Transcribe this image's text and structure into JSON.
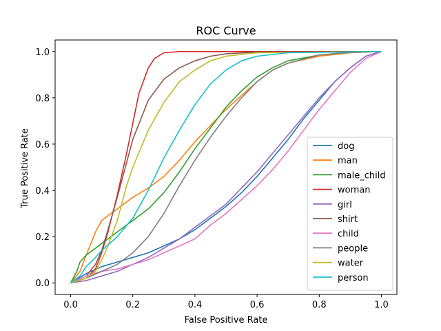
{
  "chart_data": {
    "type": "line",
    "title": "ROC Curve",
    "xlabel": "False Positive Rate",
    "ylabel": "True Positive Rate",
    "xlim": [
      -0.05,
      1.05
    ],
    "ylim": [
      -0.05,
      1.05
    ],
    "xticks": [
      "0.0",
      "0.2",
      "0.4",
      "0.6",
      "0.8",
      "1.0"
    ],
    "yticks": [
      "0.0",
      "0.2",
      "0.4",
      "0.6",
      "0.8",
      "1.0"
    ],
    "grid": false,
    "legend_position": "lower-right",
    "series": [
      {
        "name": "dog",
        "color": "#1f77b4",
        "points": [
          [
            0,
            0
          ],
          [
            0.05,
            0.04
          ],
          [
            0.1,
            0.07
          ],
          [
            0.15,
            0.09
          ],
          [
            0.2,
            0.11
          ],
          [
            0.25,
            0.13
          ],
          [
            0.3,
            0.16
          ],
          [
            0.35,
            0.19
          ],
          [
            0.4,
            0.23
          ],
          [
            0.45,
            0.28
          ],
          [
            0.5,
            0.33
          ],
          [
            0.55,
            0.39
          ],
          [
            0.6,
            0.46
          ],
          [
            0.65,
            0.54
          ],
          [
            0.7,
            0.62
          ],
          [
            0.75,
            0.71
          ],
          [
            0.8,
            0.79
          ],
          [
            0.85,
            0.87
          ],
          [
            0.9,
            0.93
          ],
          [
            0.95,
            0.98
          ],
          [
            1,
            1
          ]
        ]
      },
      {
        "name": "man",
        "color": "#ff7f0e",
        "points": [
          [
            0,
            0
          ],
          [
            0.03,
            0.05
          ],
          [
            0.05,
            0.12
          ],
          [
            0.08,
            0.22
          ],
          [
            0.1,
            0.27
          ],
          [
            0.12,
            0.29
          ],
          [
            0.15,
            0.32
          ],
          [
            0.2,
            0.37
          ],
          [
            0.25,
            0.41
          ],
          [
            0.3,
            0.46
          ],
          [
            0.35,
            0.53
          ],
          [
            0.4,
            0.61
          ],
          [
            0.45,
            0.68
          ],
          [
            0.5,
            0.75
          ],
          [
            0.55,
            0.81
          ],
          [
            0.6,
            0.87
          ],
          [
            0.65,
            0.92
          ],
          [
            0.7,
            0.95
          ],
          [
            0.8,
            0.98
          ],
          [
            0.9,
            0.995
          ],
          [
            1,
            1
          ]
        ]
      },
      {
        "name": "male_child",
        "color": "#2ca02c",
        "points": [
          [
            0,
            0
          ],
          [
            0.02,
            0.05
          ],
          [
            0.03,
            0.09
          ],
          [
            0.05,
            0.12
          ],
          [
            0.1,
            0.17
          ],
          [
            0.15,
            0.22
          ],
          [
            0.2,
            0.27
          ],
          [
            0.25,
            0.32
          ],
          [
            0.3,
            0.39
          ],
          [
            0.35,
            0.48
          ],
          [
            0.4,
            0.58
          ],
          [
            0.45,
            0.67
          ],
          [
            0.5,
            0.76
          ],
          [
            0.55,
            0.83
          ],
          [
            0.6,
            0.89
          ],
          [
            0.65,
            0.93
          ],
          [
            0.7,
            0.96
          ],
          [
            0.8,
            0.985
          ],
          [
            0.9,
            0.997
          ],
          [
            1,
            1
          ]
        ]
      },
      {
        "name": "woman",
        "color": "#d62728",
        "points": [
          [
            0,
            0
          ],
          [
            0.05,
            0.02
          ],
          [
            0.08,
            0.06
          ],
          [
            0.1,
            0.13
          ],
          [
            0.12,
            0.22
          ],
          [
            0.15,
            0.38
          ],
          [
            0.18,
            0.56
          ],
          [
            0.2,
            0.69
          ],
          [
            0.22,
            0.82
          ],
          [
            0.25,
            0.93
          ],
          [
            0.27,
            0.97
          ],
          [
            0.3,
            0.995
          ],
          [
            0.35,
            1
          ],
          [
            1,
            1
          ]
        ]
      },
      {
        "name": "girl",
        "color": "#9467bd",
        "points": [
          [
            0,
            0
          ],
          [
            0.05,
            0.01
          ],
          [
            0.1,
            0.03
          ],
          [
            0.15,
            0.05
          ],
          [
            0.2,
            0.08
          ],
          [
            0.25,
            0.11
          ],
          [
            0.3,
            0.15
          ],
          [
            0.35,
            0.19
          ],
          [
            0.4,
            0.24
          ],
          [
            0.45,
            0.29
          ],
          [
            0.5,
            0.34
          ],
          [
            0.55,
            0.41
          ],
          [
            0.6,
            0.48
          ],
          [
            0.65,
            0.56
          ],
          [
            0.7,
            0.64
          ],
          [
            0.75,
            0.72
          ],
          [
            0.8,
            0.8
          ],
          [
            0.85,
            0.87
          ],
          [
            0.9,
            0.93
          ],
          [
            0.95,
            0.98
          ],
          [
            1,
            1
          ]
        ]
      },
      {
        "name": "shirt",
        "color": "#8c564b",
        "points": [
          [
            0,
            0
          ],
          [
            0.05,
            0.03
          ],
          [
            0.08,
            0.08
          ],
          [
            0.1,
            0.14
          ],
          [
            0.12,
            0.23
          ],
          [
            0.15,
            0.37
          ],
          [
            0.18,
            0.52
          ],
          [
            0.2,
            0.62
          ],
          [
            0.25,
            0.79
          ],
          [
            0.3,
            0.88
          ],
          [
            0.35,
            0.93
          ],
          [
            0.4,
            0.96
          ],
          [
            0.45,
            0.98
          ],
          [
            0.5,
            0.99
          ],
          [
            0.6,
            0.998
          ],
          [
            1,
            1
          ]
        ]
      },
      {
        "name": "child",
        "color": "#e377c2",
        "points": [
          [
            0,
            0
          ],
          [
            0.05,
            0.03
          ],
          [
            0.1,
            0.05
          ],
          [
            0.15,
            0.06
          ],
          [
            0.2,
            0.08
          ],
          [
            0.25,
            0.1
          ],
          [
            0.3,
            0.13
          ],
          [
            0.35,
            0.16
          ],
          [
            0.4,
            0.19
          ],
          [
            0.45,
            0.25
          ],
          [
            0.5,
            0.3
          ],
          [
            0.55,
            0.36
          ],
          [
            0.6,
            0.42
          ],
          [
            0.65,
            0.49
          ],
          [
            0.7,
            0.57
          ],
          [
            0.75,
            0.66
          ],
          [
            0.8,
            0.75
          ],
          [
            0.85,
            0.83
          ],
          [
            0.9,
            0.91
          ],
          [
            0.95,
            0.97
          ],
          [
            1,
            1
          ]
        ]
      },
      {
        "name": "people",
        "color": "#7f7f7f",
        "points": [
          [
            0,
            0
          ],
          [
            0.05,
            0.02
          ],
          [
            0.1,
            0.05
          ],
          [
            0.15,
            0.08
          ],
          [
            0.2,
            0.13
          ],
          [
            0.25,
            0.2
          ],
          [
            0.3,
            0.3
          ],
          [
            0.35,
            0.42
          ],
          [
            0.4,
            0.53
          ],
          [
            0.45,
            0.63
          ],
          [
            0.5,
            0.72
          ],
          [
            0.55,
            0.8
          ],
          [
            0.6,
            0.87
          ],
          [
            0.65,
            0.92
          ],
          [
            0.7,
            0.95
          ],
          [
            0.8,
            0.985
          ],
          [
            0.9,
            0.997
          ],
          [
            1,
            1
          ]
        ]
      },
      {
        "name": "water",
        "color": "#bcbd22",
        "points": [
          [
            0,
            0
          ],
          [
            0.05,
            0.02
          ],
          [
            0.08,
            0.05
          ],
          [
            0.1,
            0.1
          ],
          [
            0.12,
            0.16
          ],
          [
            0.15,
            0.27
          ],
          [
            0.18,
            0.42
          ],
          [
            0.2,
            0.5
          ],
          [
            0.25,
            0.66
          ],
          [
            0.3,
            0.78
          ],
          [
            0.35,
            0.87
          ],
          [
            0.4,
            0.92
          ],
          [
            0.45,
            0.96
          ],
          [
            0.5,
            0.98
          ],
          [
            0.6,
            0.995
          ],
          [
            1,
            1
          ]
        ]
      },
      {
        "name": "person",
        "color": "#17becf",
        "points": [
          [
            0,
            0
          ],
          [
            0.03,
            0.03
          ],
          [
            0.05,
            0.07
          ],
          [
            0.08,
            0.11
          ],
          [
            0.1,
            0.14
          ],
          [
            0.15,
            0.2
          ],
          [
            0.2,
            0.28
          ],
          [
            0.25,
            0.4
          ],
          [
            0.3,
            0.54
          ],
          [
            0.35,
            0.66
          ],
          [
            0.4,
            0.77
          ],
          [
            0.45,
            0.86
          ],
          [
            0.5,
            0.92
          ],
          [
            0.55,
            0.96
          ],
          [
            0.6,
            0.98
          ],
          [
            0.7,
            0.995
          ],
          [
            1,
            1
          ]
        ]
      }
    ]
  }
}
